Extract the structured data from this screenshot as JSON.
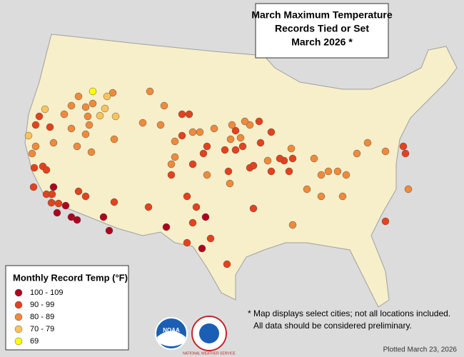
{
  "title": [
    "March Maximum Temperature",
    "Records Tied or Set",
    "March 2026 *"
  ],
  "legend": {
    "title": "Monthly Record Temp (°F)",
    "items": [
      {
        "label": "100 - 109",
        "color": "#b0001e"
      },
      {
        "label": "90 - 99",
        "color": "#e5411c"
      },
      {
        "label": "80 - 89",
        "color": "#f08a3a"
      },
      {
        "label": "70 - 79",
        "color": "#fbc45a"
      },
      {
        "label": "69",
        "color": "#ffff00"
      }
    ]
  },
  "footnote": [
    "* Map displays select cities; not all locations included.",
    "All data should be considered preliminary."
  ],
  "logos": [
    "NOAA",
    "NATIONAL WEATHER SERVICE"
  ],
  "plotted": "Plotted March 23, 2026"
}
